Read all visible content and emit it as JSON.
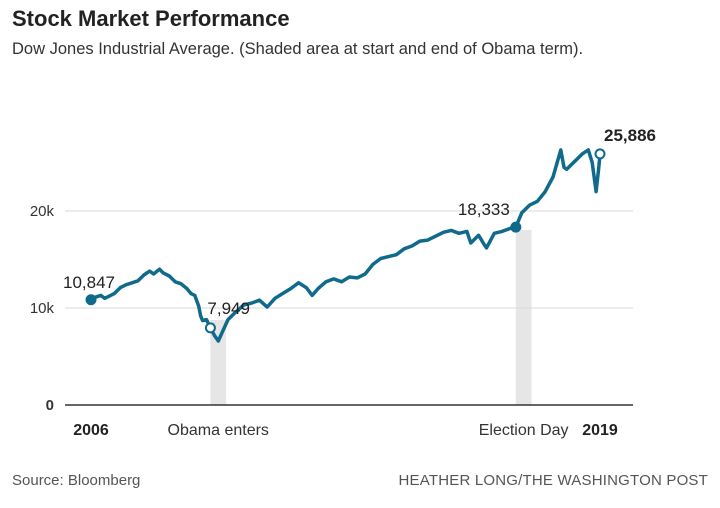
{
  "header": {
    "title": "Stock Market Performance",
    "subtitle": "Dow Jones Industrial Average. (Shaded area at start and end of Obama term)."
  },
  "footer": {
    "source": "Source: Bloomberg",
    "credit": "HEATHER LONG/THE WASHINGTON POST"
  },
  "colors": {
    "line": "#0f6a8b",
    "shade": "#e6e6e6",
    "grid": "#d9d9d9",
    "axis": "#333333"
  },
  "chart_data": {
    "type": "line",
    "title": "Stock Market Performance",
    "subtitle": "Dow Jones Industrial Average. (Shaded area at start and end of Obama term).",
    "xlabel": "",
    "ylabel": "",
    "xlim": [
      2006,
      2019
    ],
    "ylim": [
      0,
      25886
    ],
    "y_ticks": [
      {
        "value": 0,
        "label": "0"
      },
      {
        "value": 10000,
        "label": "10k"
      },
      {
        "value": 20000,
        "label": "20k"
      }
    ],
    "x_ticks": [
      {
        "value": 2006,
        "label": "2006"
      },
      {
        "value": 2019,
        "label": "2019"
      }
    ],
    "grid": true,
    "shaded_regions": [
      {
        "start": 2009.05,
        "end": 2009.45,
        "label": "Obama enters"
      },
      {
        "start": 2016.85,
        "end": 2017.25,
        "label": "Election Day"
      }
    ],
    "series": [
      {
        "values_x": [
          2006.0,
          2006.1,
          2006.25,
          2006.35,
          2006.45,
          2006.6,
          2006.75,
          2006.9,
          2007.05,
          2007.2,
          2007.35,
          2007.5,
          2007.6,
          2007.75,
          2007.85,
          2008.0,
          2008.15,
          2008.3,
          2008.45,
          2008.55,
          2008.65,
          2008.75,
          2008.8,
          2008.85,
          2008.95,
          2009.05,
          2009.15,
          2009.25,
          2009.35,
          2009.5,
          2009.7,
          2009.9,
          2010.1,
          2010.3,
          2010.5,
          2010.7,
          2010.9,
          2011.1,
          2011.3,
          2011.5,
          2011.65,
          2011.8,
          2012.0,
          2012.2,
          2012.4,
          2012.6,
          2012.8,
          2013.0,
          2013.2,
          2013.4,
          2013.6,
          2013.8,
          2014.0,
          2014.2,
          2014.4,
          2014.6,
          2014.8,
          2015.0,
          2015.2,
          2015.4,
          2015.6,
          2015.7,
          2015.9,
          2016.05,
          2016.1,
          2016.3,
          2016.5,
          2016.7,
          2016.85,
          2017.0,
          2017.2,
          2017.4,
          2017.6,
          2017.8,
          2018.0,
          2018.08,
          2018.15,
          2018.25,
          2018.4,
          2018.55,
          2018.7,
          2018.8,
          2018.9,
          2018.97,
          2019.0
        ],
        "values_y": [
          10847,
          11100,
          11300,
          11000,
          11200,
          11500,
          12100,
          12400,
          12600,
          12800,
          13400,
          13800,
          13500,
          14000,
          13600,
          13300,
          12700,
          12500,
          12000,
          11500,
          11300,
          10200,
          9200,
          8700,
          8800,
          7949,
          7200,
          6600,
          7500,
          8800,
          9600,
          10300,
          10500,
          10800,
          10100,
          11000,
          11500,
          12000,
          12600,
          12100,
          11300,
          12000,
          12700,
          13000,
          12700,
          13200,
          13100,
          13500,
          14500,
          15100,
          15300,
          15500,
          16100,
          16400,
          16900,
          17000,
          17400,
          17800,
          18000,
          17700,
          17900,
          16700,
          17500,
          16500,
          16200,
          17700,
          17900,
          18200,
          18333,
          19800,
          20600,
          21000,
          22000,
          23500,
          26300,
          24500,
          24300,
          24700,
          25300,
          25900,
          26300,
          25000,
          22000,
          24500,
          25886
        ]
      }
    ],
    "annotations": [
      {
        "x": 2006.0,
        "y": 10847,
        "label": "10,847"
      },
      {
        "x": 2009.05,
        "y": 7949,
        "label": "7,949"
      },
      {
        "x": 2016.85,
        "y": 18333,
        "label": "18,333"
      },
      {
        "x": 2019.0,
        "y": 25886,
        "label": "25,886"
      }
    ]
  }
}
